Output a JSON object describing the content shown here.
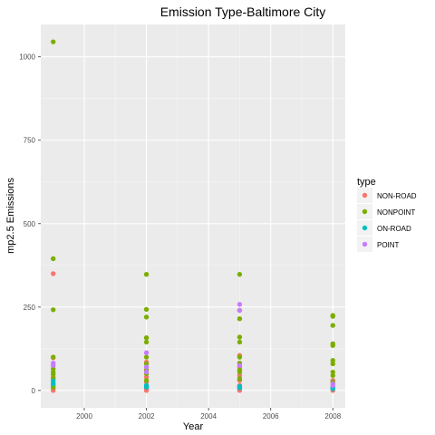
{
  "chart_data": {
    "type": "scatter",
    "title": "Emission Type-Baltimore City",
    "xlabel": "Year",
    "ylabel": "mp2.5 Emissions",
    "xlim": [
      1998.6,
      2008.4
    ],
    "ylim": [
      -52,
      1097
    ],
    "x_ticks": [
      2000,
      2002,
      2004,
      2006,
      2008
    ],
    "x_tick_labels": [
      "2000",
      "2002",
      "2004",
      "2006",
      "2008"
    ],
    "y_ticks": [
      0,
      250,
      500,
      750,
      1000
    ],
    "y_tick_labels": [
      "0",
      "250",
      "500",
      "750",
      "1000"
    ],
    "grid": true,
    "legend": {
      "title": "type",
      "placement": "right"
    },
    "series": [
      {
        "name": "NON-ROAD",
        "color": "#F8766D",
        "points": [
          {
            "x": 1999,
            "y": 350
          },
          {
            "x": 1999,
            "y": 98
          },
          {
            "x": 1999,
            "y": 40
          },
          {
            "x": 1999,
            "y": 15
          },
          {
            "x": 1999,
            "y": 5
          },
          {
            "x": 1999,
            "y": 0
          },
          {
            "x": 2002,
            "y": 85
          },
          {
            "x": 2002,
            "y": 40
          },
          {
            "x": 2002,
            "y": 25
          },
          {
            "x": 2002,
            "y": 12
          },
          {
            "x": 2002,
            "y": 8
          },
          {
            "x": 2002,
            "y": 4
          },
          {
            "x": 2002,
            "y": 0
          },
          {
            "x": 2005,
            "y": 105
          },
          {
            "x": 2005,
            "y": 70
          },
          {
            "x": 2005,
            "y": 45
          },
          {
            "x": 2005,
            "y": 30
          },
          {
            "x": 2005,
            "y": 15
          },
          {
            "x": 2005,
            "y": 8
          },
          {
            "x": 2005,
            "y": 3
          },
          {
            "x": 2005,
            "y": 0
          },
          {
            "x": 2008,
            "y": 30
          },
          {
            "x": 2008,
            "y": 10
          },
          {
            "x": 2008,
            "y": 5
          },
          {
            "x": 2008,
            "y": 0
          }
        ]
      },
      {
        "name": "NONPOINT",
        "color": "#7CAE00",
        "points": [
          {
            "x": 1999,
            "y": 1045
          },
          {
            "x": 1999,
            "y": 395
          },
          {
            "x": 1999,
            "y": 242
          },
          {
            "x": 1999,
            "y": 100
          },
          {
            "x": 1999,
            "y": 65
          },
          {
            "x": 1999,
            "y": 55
          },
          {
            "x": 1999,
            "y": 48
          },
          {
            "x": 1999,
            "y": 35
          },
          {
            "x": 1999,
            "y": 20
          },
          {
            "x": 1999,
            "y": 10
          },
          {
            "x": 2002,
            "y": 348
          },
          {
            "x": 2002,
            "y": 243
          },
          {
            "x": 2002,
            "y": 220
          },
          {
            "x": 2002,
            "y": 158
          },
          {
            "x": 2002,
            "y": 145
          },
          {
            "x": 2002,
            "y": 100
          },
          {
            "x": 2002,
            "y": 80
          },
          {
            "x": 2002,
            "y": 62
          },
          {
            "x": 2002,
            "y": 50
          },
          {
            "x": 2002,
            "y": 30
          },
          {
            "x": 2005,
            "y": 348
          },
          {
            "x": 2005,
            "y": 240
          },
          {
            "x": 2005,
            "y": 215
          },
          {
            "x": 2005,
            "y": 160
          },
          {
            "x": 2005,
            "y": 145
          },
          {
            "x": 2005,
            "y": 100
          },
          {
            "x": 2005,
            "y": 82
          },
          {
            "x": 2005,
            "y": 62
          },
          {
            "x": 2005,
            "y": 55
          },
          {
            "x": 2005,
            "y": 35
          },
          {
            "x": 2008,
            "y": 225
          },
          {
            "x": 2008,
            "y": 222
          },
          {
            "x": 2008,
            "y": 195
          },
          {
            "x": 2008,
            "y": 140
          },
          {
            "x": 2008,
            "y": 135
          },
          {
            "x": 2008,
            "y": 90
          },
          {
            "x": 2008,
            "y": 80
          },
          {
            "x": 2008,
            "y": 55
          },
          {
            "x": 2008,
            "y": 45
          },
          {
            "x": 2008,
            "y": 25
          }
        ]
      },
      {
        "name": "ON-ROAD",
        "color": "#00BFC4",
        "points": [
          {
            "x": 1999,
            "y": 28
          },
          {
            "x": 1999,
            "y": 20
          },
          {
            "x": 2002,
            "y": 15
          },
          {
            "x": 2002,
            "y": 10
          },
          {
            "x": 2005,
            "y": 12
          },
          {
            "x": 2005,
            "y": 8
          },
          {
            "x": 2008,
            "y": 8
          },
          {
            "x": 2008,
            "y": 5
          }
        ]
      },
      {
        "name": "POINT",
        "color": "#C77CFF",
        "points": [
          {
            "x": 1999,
            "y": 82
          },
          {
            "x": 1999,
            "y": 75
          },
          {
            "x": 2002,
            "y": 113
          },
          {
            "x": 2002,
            "y": 70
          },
          {
            "x": 2002,
            "y": 55
          },
          {
            "x": 2005,
            "y": 258
          },
          {
            "x": 2005,
            "y": 240
          },
          {
            "x": 2005,
            "y": 75
          },
          {
            "x": 2008,
            "y": 20
          },
          {
            "x": 2008,
            "y": 15
          }
        ]
      }
    ]
  }
}
